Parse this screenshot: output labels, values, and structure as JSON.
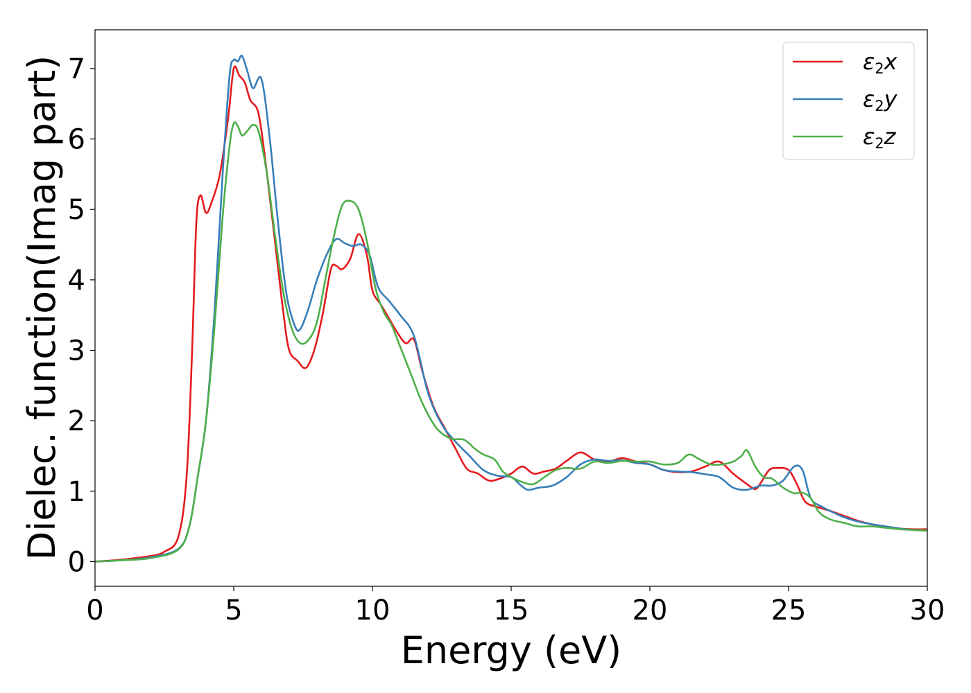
{
  "chart_data": {
    "type": "line",
    "xlabel": "Energy (eV)",
    "ylabel": "Dielec. function(Imag part)",
    "xlim": [
      0,
      30
    ],
    "ylim": [
      -0.35,
      7.55
    ],
    "xticks": [
      0,
      5,
      10,
      15,
      20,
      25,
      30
    ],
    "yticks": [
      0,
      1,
      2,
      3,
      4,
      5,
      6,
      7
    ],
    "grid": false,
    "legend_position": "top-right",
    "series": [
      {
        "name": "ε₂x",
        "legend": {
          "symbol": "ε",
          "sub": "2",
          "axis": "x"
        },
        "color": "#e41a1c",
        "points": [
          [
            0,
            0
          ],
          [
            1,
            0.03
          ],
          [
            2,
            0.08
          ],
          [
            2.5,
            0.14
          ],
          [
            3.0,
            0.35
          ],
          [
            3.3,
            1.2
          ],
          [
            3.5,
            3.0
          ],
          [
            3.65,
            4.8
          ],
          [
            3.8,
            5.2
          ],
          [
            4.0,
            4.95
          ],
          [
            4.2,
            5.1
          ],
          [
            4.5,
            5.5
          ],
          [
            4.8,
            6.3
          ],
          [
            5.0,
            7.0
          ],
          [
            5.2,
            6.9
          ],
          [
            5.4,
            6.8
          ],
          [
            5.6,
            6.55
          ],
          [
            5.9,
            6.35
          ],
          [
            6.2,
            5.5
          ],
          [
            6.5,
            4.5
          ],
          [
            6.8,
            3.5
          ],
          [
            7.0,
            3.0
          ],
          [
            7.3,
            2.85
          ],
          [
            7.6,
            2.75
          ],
          [
            7.9,
            3.0
          ],
          [
            8.2,
            3.5
          ],
          [
            8.5,
            4.15
          ],
          [
            8.7,
            4.2
          ],
          [
            8.9,
            4.15
          ],
          [
            9.2,
            4.3
          ],
          [
            9.5,
            4.65
          ],
          [
            9.8,
            4.35
          ],
          [
            10.0,
            3.85
          ],
          [
            10.3,
            3.65
          ],
          [
            10.6,
            3.45
          ],
          [
            10.9,
            3.25
          ],
          [
            11.2,
            3.1
          ],
          [
            11.5,
            3.15
          ],
          [
            11.8,
            2.7
          ],
          [
            12.2,
            2.2
          ],
          [
            12.6,
            1.9
          ],
          [
            13.0,
            1.6
          ],
          [
            13.4,
            1.32
          ],
          [
            13.8,
            1.25
          ],
          [
            14.2,
            1.15
          ],
          [
            14.6,
            1.18
          ],
          [
            15.0,
            1.25
          ],
          [
            15.4,
            1.35
          ],
          [
            15.8,
            1.25
          ],
          [
            16.2,
            1.28
          ],
          [
            16.6,
            1.32
          ],
          [
            17.0,
            1.43
          ],
          [
            17.5,
            1.55
          ],
          [
            18.0,
            1.45
          ],
          [
            18.5,
            1.42
          ],
          [
            19.0,
            1.47
          ],
          [
            19.5,
            1.42
          ],
          [
            20.0,
            1.38
          ],
          [
            20.5,
            1.3
          ],
          [
            21.0,
            1.27
          ],
          [
            21.5,
            1.28
          ],
          [
            22.0,
            1.35
          ],
          [
            22.5,
            1.42
          ],
          [
            23.0,
            1.25
          ],
          [
            23.5,
            1.1
          ],
          [
            23.8,
            1.03
          ],
          [
            24.0,
            1.12
          ],
          [
            24.3,
            1.3
          ],
          [
            24.6,
            1.33
          ],
          [
            25.0,
            1.3
          ],
          [
            25.3,
            1.1
          ],
          [
            25.6,
            0.85
          ],
          [
            26.0,
            0.78
          ],
          [
            26.5,
            0.72
          ],
          [
            27.0,
            0.65
          ],
          [
            27.5,
            0.58
          ],
          [
            28.0,
            0.53
          ],
          [
            28.5,
            0.5
          ],
          [
            29.0,
            0.47
          ],
          [
            29.5,
            0.46
          ],
          [
            30.0,
            0.46
          ]
        ]
      },
      {
        "name": "ε₂y",
        "legend": {
          "symbol": "ε",
          "sub": "2",
          "axis": "y"
        },
        "color": "#377eb8",
        "points": [
          [
            0,
            0
          ],
          [
            1,
            0.02
          ],
          [
            2,
            0.06
          ],
          [
            3.0,
            0.18
          ],
          [
            3.4,
            0.5
          ],
          [
            3.7,
            1.2
          ],
          [
            4.0,
            2.0
          ],
          [
            4.3,
            3.5
          ],
          [
            4.6,
            5.5
          ],
          [
            4.85,
            6.9
          ],
          [
            5.0,
            7.12
          ],
          [
            5.15,
            7.1
          ],
          [
            5.3,
            7.18
          ],
          [
            5.5,
            6.95
          ],
          [
            5.7,
            6.72
          ],
          [
            6.0,
            6.85
          ],
          [
            6.3,
            6.0
          ],
          [
            6.6,
            4.8
          ],
          [
            6.9,
            3.8
          ],
          [
            7.2,
            3.35
          ],
          [
            7.4,
            3.3
          ],
          [
            7.7,
            3.6
          ],
          [
            8.0,
            4.0
          ],
          [
            8.4,
            4.4
          ],
          [
            8.7,
            4.58
          ],
          [
            9.0,
            4.52
          ],
          [
            9.3,
            4.48
          ],
          [
            9.6,
            4.5
          ],
          [
            9.9,
            4.35
          ],
          [
            10.2,
            3.9
          ],
          [
            10.6,
            3.7
          ],
          [
            11.0,
            3.5
          ],
          [
            11.5,
            3.2
          ],
          [
            12.0,
            2.4
          ],
          [
            12.5,
            1.95
          ],
          [
            13.0,
            1.7
          ],
          [
            13.5,
            1.5
          ],
          [
            14.0,
            1.3
          ],
          [
            14.5,
            1.22
          ],
          [
            15.0,
            1.2
          ],
          [
            15.3,
            1.1
          ],
          [
            15.6,
            1.02
          ],
          [
            16.0,
            1.05
          ],
          [
            16.5,
            1.08
          ],
          [
            17.0,
            1.2
          ],
          [
            17.5,
            1.38
          ],
          [
            18.0,
            1.45
          ],
          [
            18.5,
            1.43
          ],
          [
            19.0,
            1.44
          ],
          [
            19.5,
            1.4
          ],
          [
            20.0,
            1.38
          ],
          [
            20.5,
            1.3
          ],
          [
            21.0,
            1.28
          ],
          [
            21.5,
            1.27
          ],
          [
            22.0,
            1.24
          ],
          [
            22.5,
            1.2
          ],
          [
            23.0,
            1.05
          ],
          [
            23.5,
            1.02
          ],
          [
            24.0,
            1.08
          ],
          [
            24.4,
            1.08
          ],
          [
            24.8,
            1.15
          ],
          [
            25.2,
            1.35
          ],
          [
            25.5,
            1.3
          ],
          [
            25.8,
            0.9
          ],
          [
            26.2,
            0.78
          ],
          [
            26.6,
            0.7
          ],
          [
            27.0,
            0.63
          ],
          [
            27.5,
            0.57
          ],
          [
            28.0,
            0.53
          ],
          [
            28.5,
            0.5
          ],
          [
            29.0,
            0.47
          ],
          [
            29.5,
            0.45
          ],
          [
            30.0,
            0.44
          ]
        ]
      },
      {
        "name": "ε₂z",
        "legend": {
          "symbol": "ε",
          "sub": "2",
          "axis": "z"
        },
        "color": "#4daf4a",
        "points": [
          [
            0,
            0
          ],
          [
            1,
            0.02
          ],
          [
            2,
            0.05
          ],
          [
            3.0,
            0.17
          ],
          [
            3.4,
            0.5
          ],
          [
            3.7,
            1.2
          ],
          [
            4.0,
            2.0
          ],
          [
            4.3,
            3.3
          ],
          [
            4.6,
            4.9
          ],
          [
            4.85,
            5.9
          ],
          [
            5.0,
            6.22
          ],
          [
            5.15,
            6.18
          ],
          [
            5.3,
            6.05
          ],
          [
            5.5,
            6.12
          ],
          [
            5.7,
            6.2
          ],
          [
            5.9,
            6.1
          ],
          [
            6.2,
            5.5
          ],
          [
            6.5,
            4.6
          ],
          [
            6.8,
            3.8
          ],
          [
            7.1,
            3.3
          ],
          [
            7.4,
            3.1
          ],
          [
            7.7,
            3.15
          ],
          [
            8.0,
            3.4
          ],
          [
            8.3,
            4.0
          ],
          [
            8.6,
            4.6
          ],
          [
            8.9,
            5.05
          ],
          [
            9.2,
            5.12
          ],
          [
            9.5,
            5.0
          ],
          [
            9.8,
            4.55
          ],
          [
            10.1,
            3.9
          ],
          [
            10.4,
            3.55
          ],
          [
            10.7,
            3.35
          ],
          [
            11.0,
            3.05
          ],
          [
            11.4,
            2.65
          ],
          [
            11.8,
            2.25
          ],
          [
            12.3,
            1.9
          ],
          [
            12.8,
            1.75
          ],
          [
            13.3,
            1.73
          ],
          [
            13.7,
            1.6
          ],
          [
            14.0,
            1.52
          ],
          [
            14.4,
            1.45
          ],
          [
            14.7,
            1.28
          ],
          [
            15.0,
            1.2
          ],
          [
            15.4,
            1.13
          ],
          [
            15.8,
            1.1
          ],
          [
            16.2,
            1.2
          ],
          [
            16.6,
            1.3
          ],
          [
            17.0,
            1.33
          ],
          [
            17.5,
            1.32
          ],
          [
            18.0,
            1.42
          ],
          [
            18.5,
            1.4
          ],
          [
            19.0,
            1.43
          ],
          [
            19.5,
            1.42
          ],
          [
            20.0,
            1.42
          ],
          [
            20.5,
            1.38
          ],
          [
            21.0,
            1.4
          ],
          [
            21.4,
            1.52
          ],
          [
            21.8,
            1.45
          ],
          [
            22.2,
            1.38
          ],
          [
            22.6,
            1.38
          ],
          [
            23.0,
            1.42
          ],
          [
            23.3,
            1.5
          ],
          [
            23.5,
            1.58
          ],
          [
            23.8,
            1.35
          ],
          [
            24.1,
            1.2
          ],
          [
            24.4,
            1.18
          ],
          [
            24.8,
            1.05
          ],
          [
            25.2,
            0.97
          ],
          [
            25.5,
            0.98
          ],
          [
            25.8,
            0.9
          ],
          [
            26.1,
            0.7
          ],
          [
            26.5,
            0.6
          ],
          [
            27.0,
            0.55
          ],
          [
            27.5,
            0.5
          ],
          [
            28.0,
            0.5
          ],
          [
            28.5,
            0.48
          ],
          [
            29.0,
            0.46
          ],
          [
            29.5,
            0.45
          ],
          [
            30.0,
            0.44
          ]
        ]
      }
    ]
  }
}
